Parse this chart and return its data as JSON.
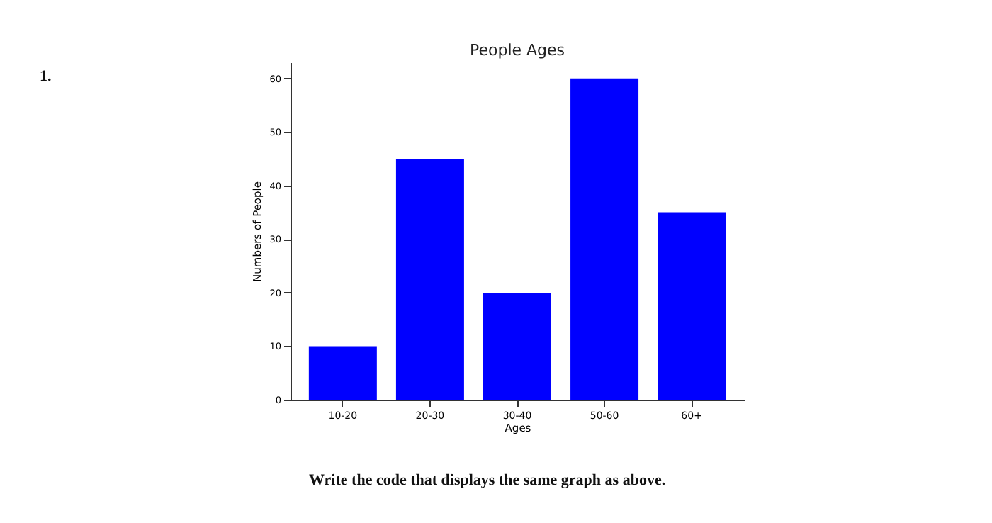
{
  "chart_data": {
    "type": "bar",
    "title": "People Ages",
    "xlabel": "Ages",
    "ylabel": "Numbers of People",
    "categories": [
      "10-20",
      "20-30",
      "30-40",
      "50-60",
      "60+"
    ],
    "values": [
      10,
      45,
      20,
      60,
      35
    ],
    "color": "#0000ff",
    "ylim": [
      0,
      63
    ],
    "yticks": [
      0,
      10,
      20,
      30,
      40,
      50,
      60
    ],
    "grid": false,
    "annotations": [
      "1.",
      "Write the code that displays the same graph as above."
    ]
  }
}
